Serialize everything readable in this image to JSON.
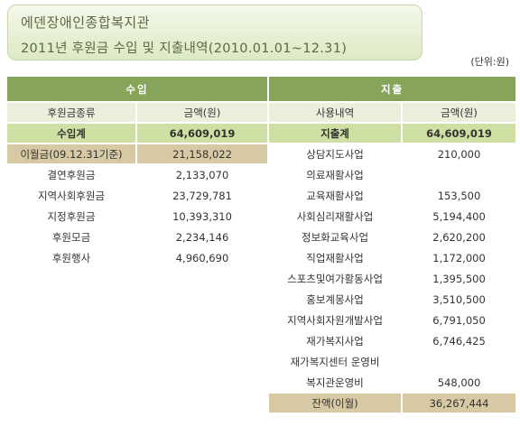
{
  "header": {
    "org_name": "에덴장애인종합복지관",
    "subtitle": "2011년 후원금 수입 및 지출내역(2010.01.01~12.31)",
    "unit": "(단위:원)"
  },
  "income": {
    "title": "수입",
    "col_type": "후원금종류",
    "col_amount": "금액(원)",
    "total_label": "수입계",
    "total_value": "64,609,019",
    "rows": [
      {
        "label": "이월금(09.12.31기준)",
        "amount": "21,158,022"
      },
      {
        "label": "결연후원금",
        "amount": "2,133,070"
      },
      {
        "label": "지역사회후원금",
        "amount": "23,729,781"
      },
      {
        "label": "지정후원금",
        "amount": "10,393,310"
      },
      {
        "label": "후원모금",
        "amount": "2,234,146"
      },
      {
        "label": "후원행사",
        "amount": "4,960,690"
      }
    ]
  },
  "expense": {
    "title": "지출",
    "col_type": "사용내역",
    "col_amount": "금액(원)",
    "total_label": "지출계",
    "total_value": "64,609,019",
    "rows": [
      {
        "label": "상담지도사업",
        "amount": "210,000"
      },
      {
        "label": "의료재활사업",
        "amount": ""
      },
      {
        "label": "교육재활사업",
        "amount": "153,500"
      },
      {
        "label": "사회심리재활사업",
        "amount": "5,194,400"
      },
      {
        "label": "정보화교육사업",
        "amount": "2,620,200"
      },
      {
        "label": "직업재활사업",
        "amount": "1,172,000"
      },
      {
        "label": "스포츠및여가활동사업",
        "amount": "1,395,500"
      },
      {
        "label": "홍보계몽사업",
        "amount": "3,510,500"
      },
      {
        "label": "지역사회자원개발사업",
        "amount": "6,791,050"
      },
      {
        "label": "재가복지사업",
        "amount": "6,746,425"
      },
      {
        "label": "재가복지센터 운영비",
        "amount": ""
      },
      {
        "label": "복지관운영비",
        "amount": "548,000"
      },
      {
        "label": "잔액(이월)",
        "amount": "36,267,444"
      }
    ]
  }
}
